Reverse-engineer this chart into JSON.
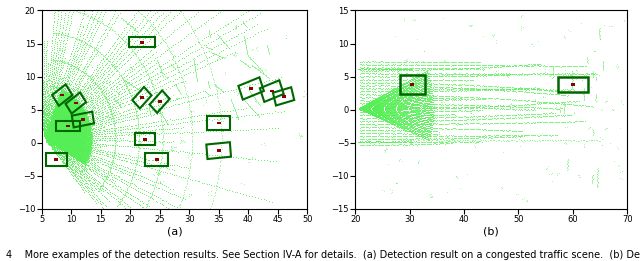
{
  "fig_width": 6.4,
  "fig_height": 2.61,
  "dpi": 100,
  "background_color": "white",
  "subplot_a": {
    "xlim": [
      5,
      50
    ],
    "ylim": [
      -10,
      20
    ],
    "xlabel": "(a)",
    "xticks": [
      5,
      10,
      15,
      20,
      25,
      30,
      35,
      40,
      45,
      50
    ],
    "yticks": [
      -10,
      -5,
      0,
      5,
      10,
      15,
      20
    ],
    "box_color": "#006600",
    "center_color": "#8b0000",
    "boxes": [
      [
        22.0,
        15.2,
        4.5,
        1.6,
        0
      ],
      [
        8.5,
        7.2,
        2.8,
        2.0,
        35
      ],
      [
        10.8,
        6.0,
        3.0,
        1.8,
        35
      ],
      [
        12.0,
        3.5,
        3.5,
        1.8,
        10
      ],
      [
        9.5,
        2.5,
        4.0,
        1.6,
        0
      ],
      [
        7.5,
        -2.5,
        3.5,
        2.0,
        0
      ],
      [
        22.0,
        6.8,
        2.8,
        1.8,
        45
      ],
      [
        25.0,
        6.2,
        3.0,
        1.8,
        45
      ],
      [
        22.5,
        0.5,
        3.5,
        1.8,
        0
      ],
      [
        24.5,
        -2.5,
        4.0,
        2.0,
        0
      ],
      [
        35.0,
        3.0,
        4.0,
        2.2,
        0
      ],
      [
        35.0,
        -1.2,
        4.0,
        2.2,
        5
      ],
      [
        40.5,
        8.2,
        3.8,
        2.2,
        20
      ],
      [
        44.0,
        7.8,
        3.5,
        2.2,
        20
      ],
      [
        46.0,
        7.0,
        3.2,
        2.0,
        15
      ]
    ]
  },
  "subplot_b": {
    "xlim": [
      20,
      70
    ],
    "ylim": [
      -15,
      15
    ],
    "xlabel": "(b)",
    "xticks": [
      20,
      30,
      40,
      50,
      60,
      70
    ],
    "yticks": [
      -15,
      -10,
      -5,
      0,
      5,
      10,
      15
    ],
    "box_color": "#006600",
    "center_color": "#8b0000",
    "boxes": [
      [
        30.5,
        3.8,
        4.5,
        2.8,
        0
      ],
      [
        60.0,
        3.8,
        5.5,
        2.2,
        0
      ]
    ]
  },
  "caption": "4    More examples of the detection results. See Section IV-A for details.  (a) Detection result on a congested traffic scene.  (b) Detection result on",
  "caption_fontsize": 7.0
}
